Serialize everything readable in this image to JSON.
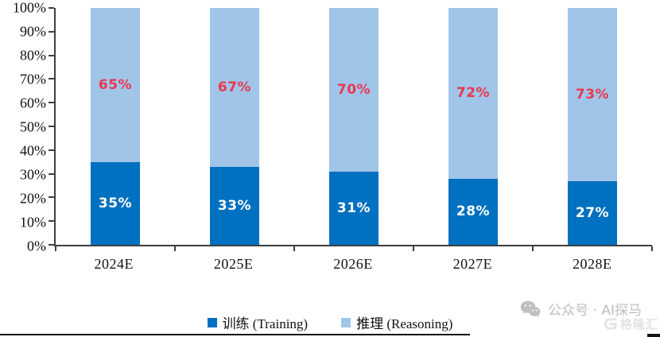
{
  "chart_data": {
    "type": "bar",
    "stacked": true,
    "title": "",
    "categories": [
      "2024E",
      "2025E",
      "2026E",
      "2027E",
      "2028E"
    ],
    "series": [
      {
        "name": "训练 (Training)",
        "values": [
          35,
          33,
          31,
          28,
          27
        ],
        "color": "#0070C0",
        "label_color": "#FFFFFF"
      },
      {
        "name": "推理 (Reasoning)",
        "values": [
          65,
          67,
          70,
          72,
          73
        ],
        "color": "#A1C5E9",
        "label_color": "#E8384F"
      }
    ],
    "value_suffix": "%",
    "ylim": [
      0,
      100
    ],
    "y_tick_step": 10,
    "y_tick_suffix": "%",
    "grid": false,
    "legend_position": "bottom",
    "axis_color": "#3F3F3F"
  },
  "watermark": {
    "wechat_label": "公众号 · AI探马",
    "logo_label": "格隆汇"
  }
}
